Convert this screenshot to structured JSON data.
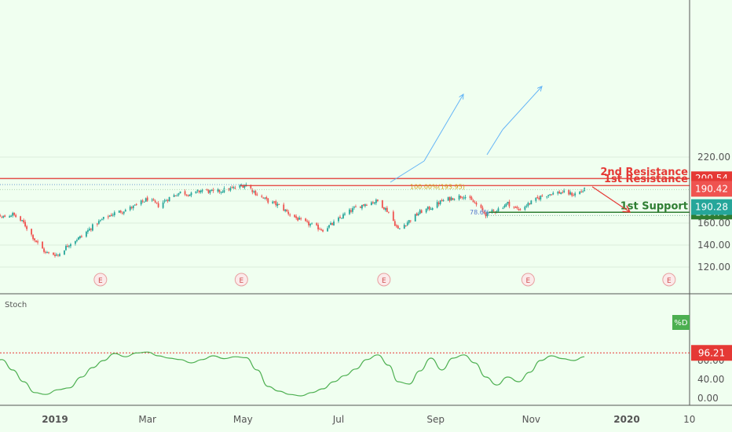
{
  "colors": {
    "background": "#f0fff0",
    "up_candle": "#26a69a",
    "down_candle": "#ef5350",
    "resistance": "#e53935",
    "support": "#2e7d32",
    "stoch": "#4caf50",
    "fib": "#d4a017",
    "drawing": "#64b5f6",
    "axis_text": "#555555"
  },
  "chart_data": [
    {
      "type": "candlestick",
      "ylim": [
        110,
        225
      ],
      "y_ticks": [
        "220.00",
        "160.00",
        "140.00",
        "120.00"
      ],
      "x_ticks": [
        {
          "label": "2019",
          "date": "2019-01-01"
        },
        {
          "label": "Mar",
          "date": "2019-03-01"
        },
        {
          "label": "May",
          "date": "2019-05-01"
        },
        {
          "label": "Jul",
          "date": "2019-07-01"
        },
        {
          "label": "Sep",
          "date": "2019-09-01"
        },
        {
          "label": "Nov",
          "date": "2019-11-01"
        },
        {
          "label": "2020",
          "date": "2020-01-01"
        },
        {
          "label": "10",
          "date": "2020-02-10"
        }
      ],
      "close_path": [
        [
          "2018-11-12",
          178
        ],
        [
          "2018-11-20",
          172
        ],
        [
          "2018-11-28",
          165
        ],
        [
          "2018-12-05",
          168
        ],
        [
          "2018-12-12",
          160
        ],
        [
          "2018-12-19",
          145
        ],
        [
          "2018-12-26",
          133
        ],
        [
          "2019-01-03",
          131
        ],
        [
          "2019-01-10",
          141
        ],
        [
          "2019-01-18",
          148
        ],
        [
          "2019-01-25",
          157
        ],
        [
          "2019-02-01",
          164
        ],
        [
          "2019-02-08",
          169
        ],
        [
          "2019-02-15",
          172
        ],
        [
          "2019-02-22",
          176
        ],
        [
          "2019-03-01",
          182
        ],
        [
          "2019-03-08",
          176
        ],
        [
          "2019-03-15",
          183
        ],
        [
          "2019-03-22",
          188
        ],
        [
          "2019-03-29",
          186
        ],
        [
          "2019-04-05",
          190
        ],
        [
          "2019-04-12",
          188
        ],
        [
          "2019-04-19",
          190
        ],
        [
          "2019-04-26",
          192
        ],
        [
          "2019-05-03",
          195
        ],
        [
          "2019-05-10",
          186
        ],
        [
          "2019-05-17",
          180
        ],
        [
          "2019-05-24",
          176
        ],
        [
          "2019-05-31",
          168
        ],
        [
          "2019-06-07",
          162
        ],
        [
          "2019-06-14",
          158
        ],
        [
          "2019-06-21",
          154
        ],
        [
          "2019-06-28",
          160
        ],
        [
          "2019-07-05",
          168
        ],
        [
          "2019-07-12",
          174
        ],
        [
          "2019-07-19",
          178
        ],
        [
          "2019-07-26",
          180
        ],
        [
          "2019-08-02",
          170
        ],
        [
          "2019-08-08",
          154
        ],
        [
          "2019-08-15",
          162
        ],
        [
          "2019-08-22",
          170
        ],
        [
          "2019-08-29",
          174
        ],
        [
          "2019-09-05",
          180
        ],
        [
          "2019-09-12",
          183
        ],
        [
          "2019-09-19",
          185
        ],
        [
          "2019-09-26",
          178
        ],
        [
          "2019-10-03",
          168
        ],
        [
          "2019-10-10",
          172
        ],
        [
          "2019-10-17",
          178
        ],
        [
          "2019-10-24",
          172
        ],
        [
          "2019-10-31",
          178
        ],
        [
          "2019-11-07",
          184
        ],
        [
          "2019-11-14",
          187
        ],
        [
          "2019-11-21",
          188
        ],
        [
          "2019-11-28",
          186
        ],
        [
          "2019-12-05",
          190
        ]
      ],
      "levels": [
        {
          "name": "2nd Resistance",
          "value": 200.54,
          "value_label": "200.54",
          "role": "resistance"
        },
        {
          "name": "1st Resistance",
          "value": 194.12,
          "value_label": "194.12",
          "role": "resistance"
        },
        {
          "name": "1st Support",
          "value": 169.78,
          "value_label": "169.78",
          "role": "support"
        }
      ],
      "price_tags": [
        {
          "label": "190.42",
          "value": 190.42,
          "color": "#ef5350"
        },
        {
          "label": "190.28",
          "value": 190.28,
          "color": "#26a69a"
        }
      ],
      "fib_label": "100.00%(193.95)",
      "fib_value": 193.95,
      "fib_low_label": "78.6%",
      "event_marker_label": "E",
      "event_dates": [
        "2019-01-30",
        "2019-04-30",
        "2019-07-30",
        "2019-10-30",
        "2020-01-28"
      ],
      "projection": {
        "from": [
          "2019-12-10",
          193
        ],
        "to": [
          "2020-01-03",
          170
        ]
      }
    },
    {
      "type": "line",
      "indicator_name": "Stoch",
      "series_label": "%D",
      "ylim": [
        -5,
        105
      ],
      "y_ticks": [
        "80.00",
        "40.00",
        "0.00"
      ],
      "reference": {
        "value": 96.21,
        "label": "96.21"
      },
      "points": [
        [
          "2018-11-12",
          45
        ],
        [
          "2018-11-20",
          70
        ],
        [
          "2018-11-28",
          82
        ],
        [
          "2018-12-05",
          60
        ],
        [
          "2018-12-12",
          35
        ],
        [
          "2018-12-19",
          12
        ],
        [
          "2018-12-26",
          8
        ],
        [
          "2019-01-03",
          18
        ],
        [
          "2019-01-10",
          22
        ],
        [
          "2019-01-18",
          45
        ],
        [
          "2019-01-25",
          65
        ],
        [
          "2019-02-01",
          80
        ],
        [
          "2019-02-08",
          95
        ],
        [
          "2019-02-15",
          88
        ],
        [
          "2019-02-22",
          96
        ],
        [
          "2019-03-01",
          98
        ],
        [
          "2019-03-08",
          90
        ],
        [
          "2019-03-15",
          85
        ],
        [
          "2019-03-22",
          82
        ],
        [
          "2019-03-29",
          75
        ],
        [
          "2019-04-05",
          82
        ],
        [
          "2019-04-12",
          90
        ],
        [
          "2019-04-19",
          84
        ],
        [
          "2019-04-26",
          88
        ],
        [
          "2019-05-03",
          86
        ],
        [
          "2019-05-10",
          60
        ],
        [
          "2019-05-17",
          25
        ],
        [
          "2019-05-24",
          15
        ],
        [
          "2019-05-31",
          8
        ],
        [
          "2019-06-07",
          5
        ],
        [
          "2019-06-14",
          12
        ],
        [
          "2019-06-21",
          20
        ],
        [
          "2019-06-28",
          35
        ],
        [
          "2019-07-05",
          48
        ],
        [
          "2019-07-12",
          62
        ],
        [
          "2019-07-19",
          82
        ],
        [
          "2019-07-26",
          92
        ],
        [
          "2019-08-02",
          70
        ],
        [
          "2019-08-08",
          35
        ],
        [
          "2019-08-15",
          30
        ],
        [
          "2019-08-22",
          58
        ],
        [
          "2019-08-29",
          85
        ],
        [
          "2019-09-05",
          60
        ],
        [
          "2019-09-12",
          85
        ],
        [
          "2019-09-19",
          92
        ],
        [
          "2019-09-26",
          75
        ],
        [
          "2019-10-03",
          45
        ],
        [
          "2019-10-10",
          28
        ],
        [
          "2019-10-17",
          45
        ],
        [
          "2019-10-24",
          35
        ],
        [
          "2019-10-31",
          55
        ],
        [
          "2019-11-07",
          80
        ],
        [
          "2019-11-14",
          90
        ],
        [
          "2019-11-21",
          84
        ],
        [
          "2019-11-28",
          80
        ],
        [
          "2019-12-05",
          88
        ]
      ]
    }
  ]
}
